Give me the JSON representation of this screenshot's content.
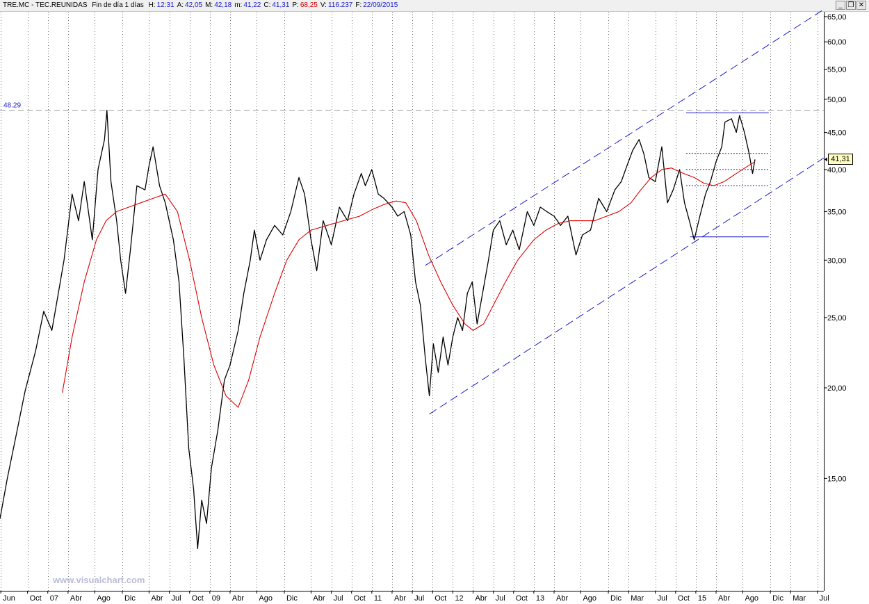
{
  "header": {
    "symbol": "TRE.MC - TEC.REUNIDAS",
    "period": "Fin de día 1 días",
    "fields": [
      {
        "label": "H:",
        "value": "12:31",
        "color": "#1a1acc"
      },
      {
        "label": "A:",
        "value": "42,05",
        "color": "#1a1acc"
      },
      {
        "label": "M:",
        "value": "42,18",
        "color": "#1a1acc"
      },
      {
        "label": "m:",
        "value": "41,22",
        "color": "#1a1acc"
      },
      {
        "label": "C:",
        "value": "41,31",
        "color": "#1a1acc"
      },
      {
        "label": "P:",
        "value": "68,25",
        "color": "#cc0000"
      },
      {
        "label": "V:",
        "value": "116.237",
        "color": "#1a1acc"
      },
      {
        "label": "F:",
        "value": "22/09/2015",
        "color": "#1a1acc"
      }
    ],
    "buttons": {
      "minimize": "_",
      "restore": "❐",
      "close": "✕"
    }
  },
  "watermark": "www.visualchart.com",
  "ref_level_label": "48.29",
  "last_price_label": "41,31",
  "chart_data": {
    "type": "line",
    "scale": "log",
    "grid": "vertical dotted",
    "ylim": [
      10.5,
      66
    ],
    "xlim": [
      2006.41,
      2016.58
    ],
    "y_ticks": [
      15,
      20,
      25,
      30,
      35,
      40,
      45,
      50,
      55,
      60,
      65
    ],
    "y_tick_labels": [
      "15,00",
      "20,00",
      "25,00",
      "30,00",
      "35,00",
      "40,00",
      "45,00",
      "50,00",
      "55,00",
      "60,00",
      "65,00"
    ],
    "x_ticks": [
      {
        "t": 2006.42,
        "label": "Jun"
      },
      {
        "t": 2006.75,
        "label": "Oct"
      },
      {
        "t": 2007.0,
        "label": "07"
      },
      {
        "t": 2007.25,
        "label": "Abr"
      },
      {
        "t": 2007.58,
        "label": "Ago"
      },
      {
        "t": 2007.92,
        "label": "Dic"
      },
      {
        "t": 2008.25,
        "label": "Abr"
      },
      {
        "t": 2008.5,
        "label": "Jul"
      },
      {
        "t": 2008.75,
        "label": "Oct"
      },
      {
        "t": 2009.0,
        "label": "09"
      },
      {
        "t": 2009.25,
        "label": "Abr"
      },
      {
        "t": 2009.58,
        "label": "Ago"
      },
      {
        "t": 2009.92,
        "label": "Dic"
      },
      {
        "t": 2010.25,
        "label": "Abr"
      },
      {
        "t": 2010.5,
        "label": "Jul"
      },
      {
        "t": 2010.75,
        "label": "Oct"
      },
      {
        "t": 2011.0,
        "label": "11"
      },
      {
        "t": 2011.25,
        "label": "Abr"
      },
      {
        "t": 2011.5,
        "label": "Jul"
      },
      {
        "t": 2011.75,
        "label": "Oct"
      },
      {
        "t": 2012.0,
        "label": "12"
      },
      {
        "t": 2012.25,
        "label": "Abr"
      },
      {
        "t": 2012.5,
        "label": "Jul"
      },
      {
        "t": 2012.75,
        "label": "Oct"
      },
      {
        "t": 2013.0,
        "label": "13"
      },
      {
        "t": 2013.25,
        "label": "Abr"
      },
      {
        "t": 2013.58,
        "label": "Ago"
      },
      {
        "t": 2013.92,
        "label": "Dic"
      },
      {
        "t": 2014.17,
        "label": "Mar"
      },
      {
        "t": 2014.5,
        "label": "Jul"
      },
      {
        "t": 2014.75,
        "label": "Oct"
      },
      {
        "t": 2015.0,
        "label": "15"
      },
      {
        "t": 2015.25,
        "label": "Abr"
      },
      {
        "t": 2015.58,
        "label": "Ago"
      },
      {
        "t": 2015.92,
        "label": "Dic"
      },
      {
        "t": 2016.17,
        "label": "Mar"
      },
      {
        "t": 2016.5,
        "label": "Jul"
      }
    ],
    "series": [
      {
        "color": "#000000",
        "points": [
          [
            2006.41,
            13.2
          ],
          [
            2006.5,
            15.0
          ],
          [
            2006.6,
            17.0
          ],
          [
            2006.72,
            19.8
          ],
          [
            2006.85,
            22.5
          ],
          [
            2006.95,
            25.5
          ],
          [
            2007.05,
            24.0
          ],
          [
            2007.13,
            27.0
          ],
          [
            2007.2,
            30.0
          ],
          [
            2007.3,
            37.0
          ],
          [
            2007.38,
            34.0
          ],
          [
            2007.45,
            38.5
          ],
          [
            2007.55,
            32.0
          ],
          [
            2007.62,
            40.0
          ],
          [
            2007.7,
            44.0
          ],
          [
            2007.73,
            48.3
          ],
          [
            2007.78,
            38.5
          ],
          [
            2007.85,
            34.0
          ],
          [
            2007.9,
            30.0
          ],
          [
            2007.96,
            27.0
          ],
          [
            2008.02,
            31.0
          ],
          [
            2008.1,
            38.0
          ],
          [
            2008.2,
            37.5
          ],
          [
            2008.25,
            40.5
          ],
          [
            2008.3,
            43.0
          ],
          [
            2008.38,
            38.0
          ],
          [
            2008.45,
            36.0
          ],
          [
            2008.55,
            32.0
          ],
          [
            2008.62,
            28.0
          ],
          [
            2008.68,
            22.0
          ],
          [
            2008.74,
            16.5
          ],
          [
            2008.8,
            14.5
          ],
          [
            2008.85,
            12.0
          ],
          [
            2008.9,
            14.0
          ],
          [
            2008.96,
            13.0
          ],
          [
            2009.02,
            15.5
          ],
          [
            2009.1,
            17.5
          ],
          [
            2009.18,
            20.5
          ],
          [
            2009.25,
            21.5
          ],
          [
            2009.35,
            24.0
          ],
          [
            2009.42,
            27.0
          ],
          [
            2009.5,
            30.0
          ],
          [
            2009.55,
            33.0
          ],
          [
            2009.62,
            30.0
          ],
          [
            2009.7,
            32.0
          ],
          [
            2009.8,
            33.5
          ],
          [
            2009.9,
            32.5
          ],
          [
            2010.0,
            35.0
          ],
          [
            2010.1,
            39.0
          ],
          [
            2010.17,
            37.0
          ],
          [
            2010.25,
            32.0
          ],
          [
            2010.32,
            29.0
          ],
          [
            2010.4,
            34.0
          ],
          [
            2010.5,
            31.5
          ],
          [
            2010.6,
            35.5
          ],
          [
            2010.7,
            34.0
          ],
          [
            2010.78,
            37.0
          ],
          [
            2010.87,
            39.5
          ],
          [
            2010.92,
            38.0
          ],
          [
            2011.0,
            40.0
          ],
          [
            2011.08,
            37.0
          ],
          [
            2011.15,
            36.5
          ],
          [
            2011.25,
            35.5
          ],
          [
            2011.32,
            34.5
          ],
          [
            2011.4,
            35.0
          ],
          [
            2011.48,
            32.5
          ],
          [
            2011.54,
            28.0
          ],
          [
            2011.6,
            26.0
          ],
          [
            2011.66,
            22.0
          ],
          [
            2011.71,
            19.5
          ],
          [
            2011.76,
            23.0
          ],
          [
            2011.82,
            21.0
          ],
          [
            2011.88,
            23.5
          ],
          [
            2011.94,
            21.5
          ],
          [
            2012.0,
            23.5
          ],
          [
            2012.06,
            25.0
          ],
          [
            2012.12,
            24.0
          ],
          [
            2012.18,
            27.0
          ],
          [
            2012.24,
            28.0
          ],
          [
            2012.3,
            24.5
          ],
          [
            2012.38,
            27.5
          ],
          [
            2012.44,
            30.0
          ],
          [
            2012.5,
            33.0
          ],
          [
            2012.58,
            34.0
          ],
          [
            2012.66,
            31.5
          ],
          [
            2012.74,
            33.0
          ],
          [
            2012.82,
            31.0
          ],
          [
            2012.92,
            35.0
          ],
          [
            2013.0,
            33.5
          ],
          [
            2013.08,
            35.5
          ],
          [
            2013.16,
            35.0
          ],
          [
            2013.25,
            34.5
          ],
          [
            2013.33,
            33.5
          ],
          [
            2013.42,
            34.5
          ],
          [
            2013.52,
            30.5
          ],
          [
            2013.6,
            32.5
          ],
          [
            2013.7,
            33.0
          ],
          [
            2013.8,
            36.5
          ],
          [
            2013.9,
            35.0
          ],
          [
            2014.0,
            37.5
          ],
          [
            2014.08,
            38.5
          ],
          [
            2014.15,
            40.5
          ],
          [
            2014.22,
            42.5
          ],
          [
            2014.3,
            44.0
          ],
          [
            2014.36,
            42.0
          ],
          [
            2014.42,
            39.0
          ],
          [
            2014.5,
            38.5
          ],
          [
            2014.58,
            43.0
          ],
          [
            2014.65,
            36.0
          ],
          [
            2014.72,
            37.5
          ],
          [
            2014.8,
            40.0
          ],
          [
            2014.86,
            36.0
          ],
          [
            2014.92,
            34.0
          ],
          [
            2014.98,
            32.0
          ],
          [
            2015.05,
            34.5
          ],
          [
            2015.12,
            37.0
          ],
          [
            2015.18,
            38.5
          ],
          [
            2015.25,
            41.0
          ],
          [
            2015.32,
            43.0
          ],
          [
            2015.36,
            46.5
          ],
          [
            2015.44,
            47.0
          ],
          [
            2015.5,
            45.0
          ],
          [
            2015.54,
            47.5
          ],
          [
            2015.6,
            45.0
          ],
          [
            2015.66,
            42.0
          ],
          [
            2015.7,
            39.5
          ],
          [
            2015.73,
            41.3
          ]
        ]
      },
      {
        "color": "#dd0000",
        "points": [
          [
            2007.18,
            19.7
          ],
          [
            2007.3,
            23.5
          ],
          [
            2007.45,
            28.0
          ],
          [
            2007.6,
            32.0
          ],
          [
            2007.72,
            34.0
          ],
          [
            2007.85,
            35.0
          ],
          [
            2008.0,
            35.5
          ],
          [
            2008.15,
            36.0
          ],
          [
            2008.3,
            36.5
          ],
          [
            2008.45,
            37.0
          ],
          [
            2008.6,
            35.0
          ],
          [
            2008.75,
            30.0
          ],
          [
            2008.9,
            25.0
          ],
          [
            2009.05,
            21.5
          ],
          [
            2009.2,
            19.5
          ],
          [
            2009.35,
            18.8
          ],
          [
            2009.48,
            20.5
          ],
          [
            2009.62,
            23.5
          ],
          [
            2009.8,
            27.0
          ],
          [
            2009.95,
            30.0
          ],
          [
            2010.1,
            32.0
          ],
          [
            2010.25,
            33.0
          ],
          [
            2010.45,
            33.5
          ],
          [
            2010.65,
            34.0
          ],
          [
            2010.85,
            34.5
          ],
          [
            2011.0,
            35.2
          ],
          [
            2011.15,
            35.8
          ],
          [
            2011.3,
            36.2
          ],
          [
            2011.42,
            36.0
          ],
          [
            2011.55,
            34.0
          ],
          [
            2011.7,
            30.5
          ],
          [
            2011.85,
            28.0
          ],
          [
            2012.0,
            26.0
          ],
          [
            2012.15,
            24.5
          ],
          [
            2012.25,
            24.0
          ],
          [
            2012.38,
            24.5
          ],
          [
            2012.5,
            26.0
          ],
          [
            2012.65,
            28.0
          ],
          [
            2012.8,
            30.0
          ],
          [
            2013.0,
            32.0
          ],
          [
            2013.15,
            33.0
          ],
          [
            2013.3,
            33.7
          ],
          [
            2013.45,
            34.0
          ],
          [
            2013.6,
            34.0
          ],
          [
            2013.75,
            34.0
          ],
          [
            2013.9,
            34.5
          ],
          [
            2014.05,
            35.0
          ],
          [
            2014.2,
            36.0
          ],
          [
            2014.32,
            37.5
          ],
          [
            2014.45,
            39.0
          ],
          [
            2014.58,
            40.0
          ],
          [
            2014.7,
            40.2
          ],
          [
            2014.85,
            39.5
          ],
          [
            2014.98,
            39.0
          ],
          [
            2015.1,
            38.3
          ],
          [
            2015.22,
            38.0
          ],
          [
            2015.35,
            38.5
          ],
          [
            2015.5,
            39.5
          ],
          [
            2015.65,
            40.5
          ],
          [
            2015.73,
            41.0
          ]
        ]
      }
    ],
    "reference_level": 48.29,
    "last_price": 41.31,
    "trend_lines": [
      {
        "kind": "dashed",
        "color": "#1a1acc",
        "from": [
          2011.66,
          29.5
        ],
        "to": [
          2016.58,
          66.5
        ]
      },
      {
        "kind": "dashed",
        "color": "#1a1acc",
        "from": [
          2011.71,
          18.4
        ],
        "to": [
          2016.58,
          41.5
        ]
      },
      {
        "kind": "solid",
        "color": "#1a1acc",
        "from": [
          2014.88,
          47.9
        ],
        "to": [
          2015.9,
          47.9
        ]
      },
      {
        "kind": "solid",
        "color": "#1a1acc",
        "from": [
          2014.93,
          32.3
        ],
        "to": [
          2015.9,
          32.3
        ]
      },
      {
        "kind": "dotted",
        "color": "#1a1acc",
        "from": [
          2014.88,
          42.1
        ],
        "to": [
          2015.9,
          42.1
        ]
      },
      {
        "kind": "dotted",
        "color": "#1a1acc",
        "from": [
          2014.88,
          40.0
        ],
        "to": [
          2015.9,
          40.0
        ]
      },
      {
        "kind": "dotted",
        "color": "#1a1acc",
        "from": [
          2014.88,
          38.0
        ],
        "to": [
          2015.9,
          38.0
        ]
      }
    ]
  }
}
